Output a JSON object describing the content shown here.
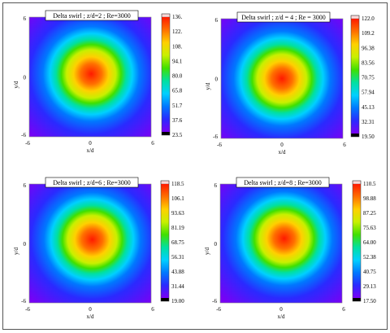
{
  "chart_data": [
    {
      "type": "heatmap",
      "title": "Delta swirl ; z/d=2 ; Re=3000",
      "xlabel": "x/d",
      "ylabel": "y/d",
      "xlim": [
        -6,
        6
      ],
      "ylim": [
        -6,
        6
      ],
      "x_ticks": [
        "-6",
        "0",
        "6"
      ],
      "y_ticks": [
        "6",
        "0",
        "-6"
      ],
      "colorbar_labels": [
        "136.",
        "122.",
        "108.",
        "94.1",
        "80.0",
        "65.8",
        "51.7",
        "37.6",
        "23.5"
      ],
      "peak_value": 136,
      "peak_x": 0.1,
      "peak_y": 0.3,
      "min_value": 23.5
    },
    {
      "type": "heatmap",
      "title": "Delta swirl ; z/d = 4 ; Re = 3000",
      "xlabel": "x/d",
      "ylabel": "y/d",
      "xlim": [
        -6,
        6
      ],
      "ylim": [
        -6,
        6
      ],
      "x_ticks": [
        "-6",
        "0",
        "6"
      ],
      "y_ticks": [
        "6",
        "0",
        "-6"
      ],
      "colorbar_labels": [
        "122.0",
        "109.2",
        "96.38",
        "83.56",
        "70.75",
        "57.94",
        "45.13",
        "32.31",
        "19.50"
      ],
      "peak_value": 122,
      "peak_x": 0.0,
      "peak_y": 0.0,
      "min_value": 19.5
    },
    {
      "type": "heatmap",
      "title": "Delta swirl ; z/d=6 ; Re=3000",
      "xlabel": "x/d",
      "ylabel": "y/d",
      "xlim": [
        -6,
        6
      ],
      "ylim": [
        -6,
        6
      ],
      "x_ticks": [
        "-6",
        "0",
        "6"
      ],
      "y_ticks": [
        "6",
        "0",
        "-6"
      ],
      "colorbar_labels": [
        "118.5",
        "106.1",
        "93.63",
        "81.19",
        "68.75",
        "56.31",
        "43.88",
        "31.44",
        "19.00"
      ],
      "peak_value": 118.5,
      "peak_x": 0.2,
      "peak_y": 0.4,
      "min_value": 19
    },
    {
      "type": "heatmap",
      "title": "Delta swirl ; z/d=8 ; Re=3000",
      "xlabel": "x/d",
      "ylabel": "y/d",
      "xlim": [
        -6,
        6
      ],
      "ylim": [
        -6,
        6
      ],
      "x_ticks": [
        "-6",
        "0",
        "6"
      ],
      "y_ticks": [
        "6",
        "0",
        "-6"
      ],
      "colorbar_labels": [
        "110.5",
        "98.88",
        "87.25",
        "75.63",
        "64.00",
        "52.38",
        "40.75",
        "29.13",
        "17.50"
      ],
      "peak_value": 110.5,
      "peak_x": 0.3,
      "peak_y": 0.5,
      "min_value": 17.5
    }
  ],
  "colors": {
    "colormap": [
      "#7a00f5",
      "#2a2aff",
      "#0078ff",
      "#00d0ff",
      "#00e0a0",
      "#40e000",
      "#c8f000",
      "#ffd000",
      "#ff7000",
      "#ff1a00"
    ],
    "colorbar_top": "#ffd8d8",
    "colorbar_bottom": "#000000",
    "frame": "#555555"
  }
}
